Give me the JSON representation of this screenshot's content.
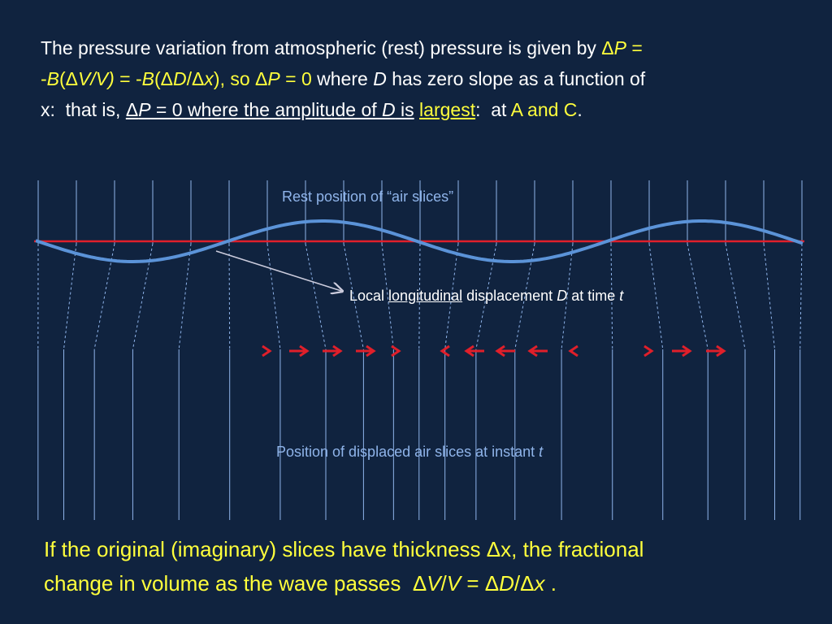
{
  "intro": {
    "runs": [
      "The pressure variation from atmospheric (rest) pressure is given by ",
      "Δ",
      "P",
      " =",
      "-",
      "B",
      "(Δ",
      "V/V)",
      " = -",
      "B",
      "(Δ",
      "D",
      "/Δ",
      "x",
      "), so Δ",
      "P",
      " = 0",
      " where ",
      "D",
      " has zero slope as a function of",
      "x:  that is, ",
      "Δ",
      "P",
      " = 0 where the amplitude of ",
      "D",
      " is",
      " ",
      "largest",
      ":  at ",
      "A and C",
      "."
    ]
  },
  "diagram": {
    "rest_label": "Rest position of “air slices”",
    "displacement_label": {
      "runs": [
        "Local ",
        "longitudinal",
        " displacement ",
        "D",
        " at time ",
        "t"
      ]
    },
    "displaced_label": {
      "runs": [
        "Position of displaced air slices at instant ",
        "t"
      ]
    }
  },
  "footer": {
    "runs": [
      "If the original (imaginary) slices have thickness Δx, the fractional",
      "change in volume as the wave passes  Δ",
      "V",
      "/",
      "V",
      " = Δ",
      "D",
      "/Δ",
      "x",
      " ."
    ]
  }
}
